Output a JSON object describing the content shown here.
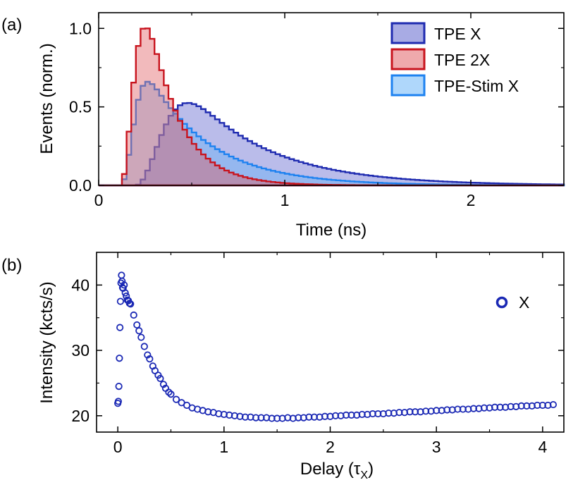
{
  "chart_data": [
    {
      "panel_label": "(a)",
      "type": "area",
      "step": true,
      "xlabel": "Time (ns)",
      "ylabel": "Events (norm.)",
      "xlim": [
        0,
        2.5
      ],
      "ylim": [
        0,
        1.1
      ],
      "xticks": [
        0,
        1,
        2
      ],
      "yticks": [
        0.0,
        0.5,
        1.0
      ],
      "ytick_labels": [
        "0.0",
        "0.5",
        "1.0"
      ],
      "legend_position": "top-right",
      "grid": false,
      "series": [
        {
          "name": "TPE X",
          "line_color": "#1f2bb0",
          "fill_color": "#4a4fc7",
          "fill_opacity": 0.38,
          "model": {
            "kind": "rise-decay",
            "onset": 0.2,
            "rise": 0.2,
            "decay": 0.43,
            "peak": 0.525
          },
          "x": [
            0.2,
            0.3,
            0.4,
            0.5,
            0.6,
            0.7,
            0.8,
            0.9,
            1.0,
            1.2,
            1.4,
            1.6,
            1.8,
            2.0,
            2.2,
            2.5
          ],
          "y": [
            0.0,
            0.13,
            0.3,
            0.44,
            0.51,
            0.52,
            0.5,
            0.45,
            0.39,
            0.27,
            0.18,
            0.11,
            0.07,
            0.04,
            0.02,
            0.01
          ]
        },
        {
          "name": "TPE 2X",
          "line_color": "#c8141e",
          "fill_color": "#e05a60",
          "fill_opacity": 0.42,
          "model": {
            "kind": "rise-decay",
            "onset": 0.12,
            "rise": 0.1,
            "decay": 0.17,
            "peak": 1.0
          },
          "x": [
            0.12,
            0.2,
            0.25,
            0.3,
            0.35,
            0.4,
            0.45,
            0.5,
            0.6,
            0.7,
            0.8,
            0.9,
            1.0,
            1.2,
            1.4
          ],
          "y": [
            0.0,
            0.25,
            0.53,
            0.78,
            0.95,
            1.0,
            0.93,
            0.78,
            0.52,
            0.3,
            0.17,
            0.09,
            0.05,
            0.02,
            0.01
          ]
        },
        {
          "name": "TPE-Stim X",
          "line_color": "#1e82f0",
          "fill_color": "#5fb0f8",
          "fill_opacity": 0.4,
          "model": {
            "kind": "rise-decay",
            "onset": 0.12,
            "rise": 0.09,
            "decay": 0.33,
            "peak": 0.66
          },
          "x": [
            0.12,
            0.2,
            0.25,
            0.3,
            0.35,
            0.4,
            0.45,
            0.5,
            0.6,
            0.7,
            0.8,
            1.0,
            1.2,
            1.4,
            1.6,
            2.0
          ],
          "y": [
            0.0,
            0.12,
            0.3,
            0.47,
            0.6,
            0.66,
            0.65,
            0.6,
            0.47,
            0.36,
            0.28,
            0.17,
            0.1,
            0.06,
            0.03,
            0.01
          ]
        }
      ]
    },
    {
      "panel_label": "(b)",
      "type": "scatter",
      "xlabel": "Delay (τ",
      "xlabel_sub": "X",
      "xlabel_close": ")",
      "ylabel": "Intensity (kcts/s)",
      "xlim": [
        -0.2,
        4.2
      ],
      "ylim": [
        17.5,
        45
      ],
      "xticks": [
        0,
        1,
        2,
        3,
        4
      ],
      "yticks": [
        20,
        30,
        40
      ],
      "legend_position": "top-right",
      "grid": false,
      "series": [
        {
          "name": "X",
          "marker": "open-circle",
          "color": "#1a28b4",
          "x": [
            0.0,
            0.005,
            0.01,
            0.015,
            0.02,
            0.025,
            0.03,
            0.035,
            0.04,
            0.045,
            0.05,
            0.06,
            0.07,
            0.08,
            0.09,
            0.1,
            0.11,
            0.12,
            0.15,
            0.18,
            0.2,
            0.22,
            0.25,
            0.28,
            0.3,
            0.33,
            0.35,
            0.38,
            0.4,
            0.43,
            0.45,
            0.48,
            0.5,
            0.55,
            0.6,
            0.65,
            0.7,
            0.75,
            0.8,
            0.85,
            0.9,
            0.95,
            1.0,
            1.05,
            1.1,
            1.15,
            1.2,
            1.25,
            1.3,
            1.35,
            1.4,
            1.45,
            1.5,
            1.55,
            1.6,
            1.65,
            1.7,
            1.75,
            1.8,
            1.85,
            1.9,
            1.95,
            2.0,
            2.05,
            2.1,
            2.15,
            2.2,
            2.25,
            2.3,
            2.35,
            2.4,
            2.45,
            2.5,
            2.55,
            2.6,
            2.65,
            2.7,
            2.75,
            2.8,
            2.85,
            2.9,
            2.95,
            3.0,
            3.05,
            3.1,
            3.15,
            3.2,
            3.25,
            3.3,
            3.35,
            3.4,
            3.45,
            3.5,
            3.55,
            3.6,
            3.65,
            3.7,
            3.75,
            3.8,
            3.85,
            3.9,
            3.95,
            4.0,
            4.05,
            4.1
          ],
          "y": [
            21.9,
            22.2,
            24.5,
            28.8,
            33.5,
            37.5,
            40.3,
            41.5,
            40.6,
            39.6,
            39.5,
            40.0,
            38.8,
            38.3,
            37.7,
            37.6,
            37.2,
            37.1,
            35.4,
            33.9,
            33.0,
            32.0,
            30.6,
            29.3,
            28.7,
            27.6,
            26.9,
            26.2,
            25.7,
            24.8,
            24.2,
            23.6,
            23.3,
            22.5,
            22.0,
            21.6,
            21.2,
            21.0,
            20.8,
            20.6,
            20.5,
            20.3,
            20.2,
            20.1,
            20.0,
            19.9,
            19.8,
            19.8,
            19.7,
            19.7,
            19.7,
            19.6,
            19.6,
            19.6,
            19.7,
            19.6,
            19.7,
            19.7,
            19.8,
            19.8,
            19.8,
            19.9,
            19.9,
            20.0,
            20.0,
            20.1,
            20.1,
            20.1,
            20.2,
            20.2,
            20.3,
            20.3,
            20.3,
            20.4,
            20.4,
            20.5,
            20.5,
            20.6,
            20.6,
            20.6,
            20.7,
            20.7,
            20.8,
            20.8,
            20.9,
            20.9,
            21.0,
            21.0,
            21.0,
            21.1,
            21.1,
            21.2,
            21.2,
            21.3,
            21.3,
            21.3,
            21.4,
            21.4,
            21.5,
            21.5,
            21.5,
            21.6,
            21.6,
            21.6,
            21.7
          ]
        }
      ]
    }
  ]
}
